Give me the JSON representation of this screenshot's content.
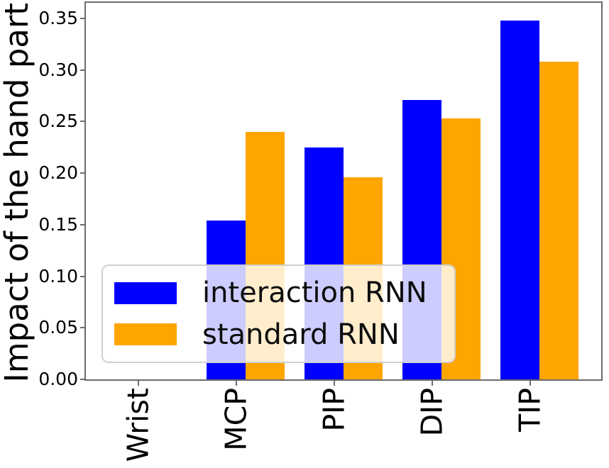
{
  "figure": {
    "background": "#ffffff",
    "spine_color": "#6b6b6b"
  },
  "chart_data": {
    "type": "bar",
    "title": "",
    "xlabel": "",
    "ylabel": "Impact of the hand part",
    "categories": [
      "Wrist",
      "MCP",
      "PIP",
      "DIP",
      "TIP"
    ],
    "series": [
      {
        "name": "interaction RNN",
        "color": "#0000ff",
        "values": [
          0.0,
          0.154,
          0.225,
          0.271,
          0.348
        ]
      },
      {
        "name": "standard RNN",
        "color": "#ffa500",
        "values": [
          0.0,
          0.24,
          0.196,
          0.253,
          0.308
        ]
      }
    ],
    "ylim": [
      0,
      0.365
    ],
    "ytick_labels": [
      "0.00",
      "0.05",
      "0.10",
      "0.15",
      "0.20",
      "0.25",
      "0.30",
      "0.35"
    ],
    "grid": false,
    "legend": {
      "position": "lower-left-inside",
      "background_alpha": 0.8,
      "entries": [
        "interaction RNN",
        "standard RNN"
      ]
    }
  }
}
